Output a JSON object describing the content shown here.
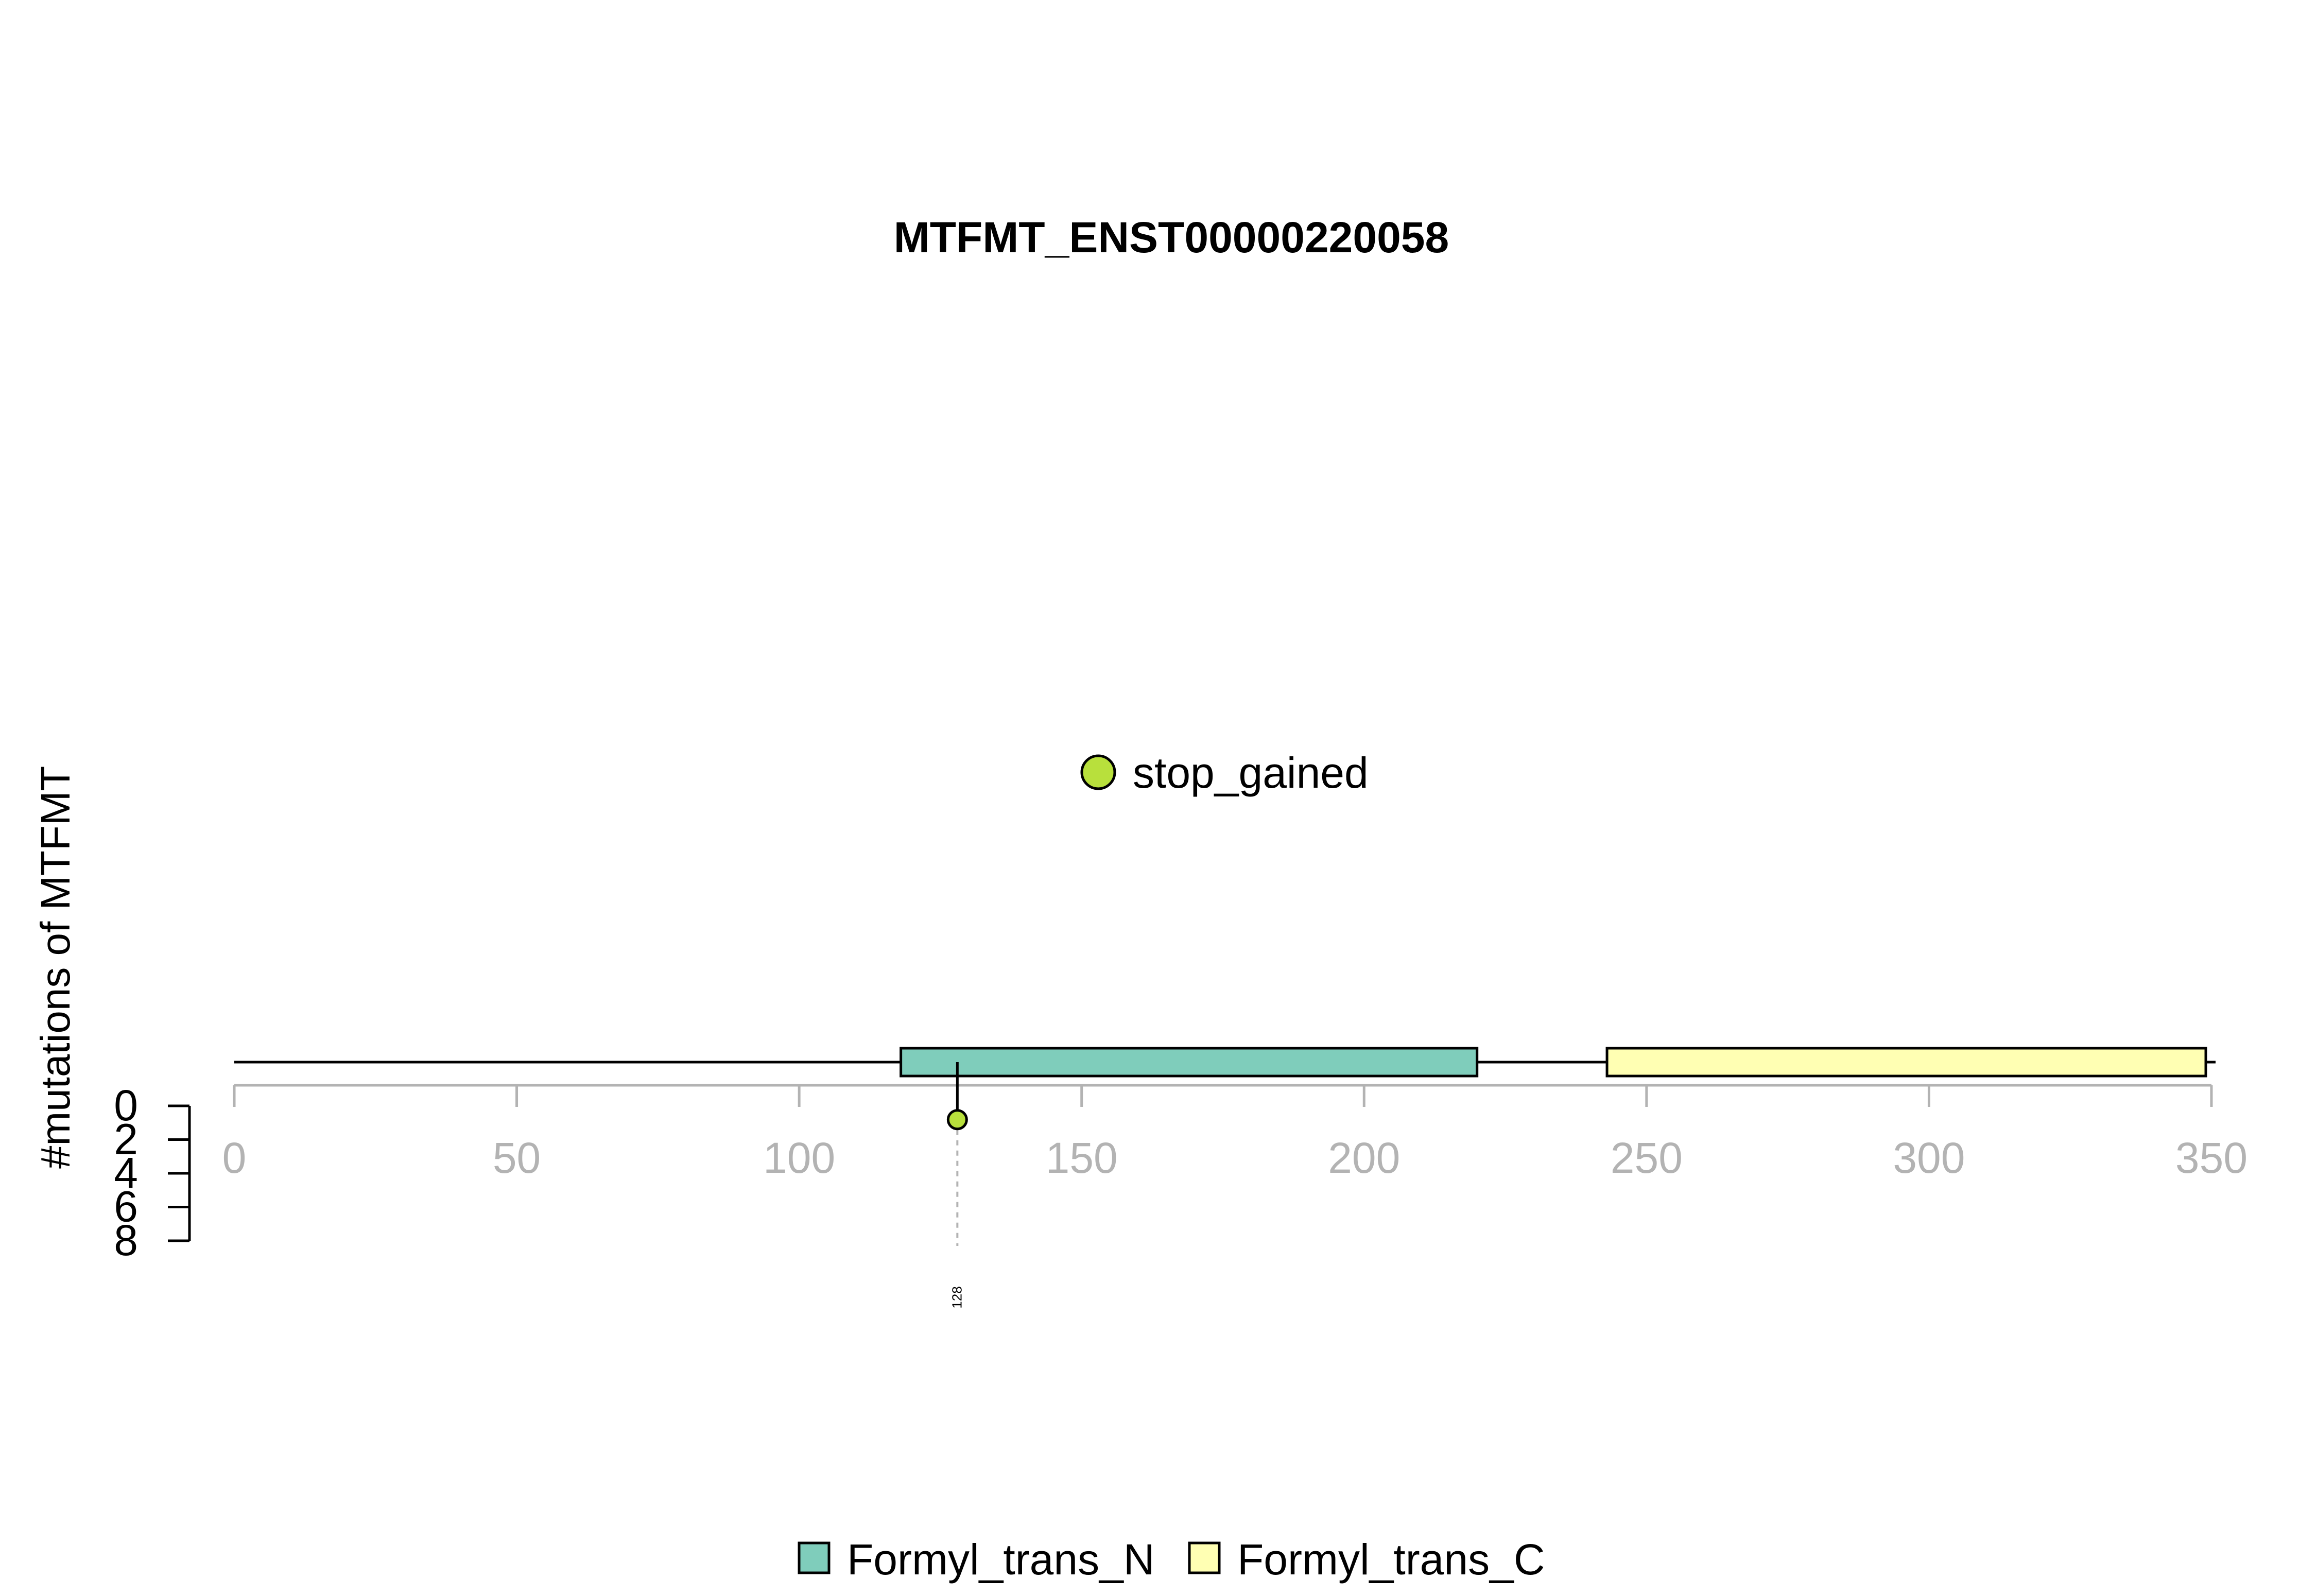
{
  "chart_data": {
    "type": "lollipop",
    "title": "MTFMT_ENST00000220058",
    "ylabel": "#mutations of MTFMT",
    "x_ticks": [
      "0",
      "50",
      "100",
      "150",
      "200",
      "250",
      "300",
      "350"
    ],
    "xlim": [
      0,
      350
    ],
    "protein_length": 350,
    "y_ticks": [
      "0",
      "2",
      "4",
      "6",
      "8"
    ],
    "ylim": [
      0,
      8
    ],
    "domains": [
      {
        "name": "Formyl_trans_N",
        "start": 118,
        "end": 220,
        "color": "#7fcdbb"
      },
      {
        "name": "Formyl_trans_C",
        "start": 243,
        "end": 349,
        "color": "#ffffb3"
      }
    ],
    "mutations": [
      {
        "position": 128,
        "count": 1,
        "type": "stop_gained",
        "label": "128",
        "color": "#b8e03c"
      }
    ],
    "mutation_legend": [
      {
        "type": "stop_gained",
        "color": "#b8e03c"
      }
    ],
    "domain_legend": [
      {
        "name": "Formyl_trans_N",
        "color": "#7fcdbb"
      },
      {
        "name": "Formyl_trans_C",
        "color": "#ffffb3"
      }
    ]
  }
}
